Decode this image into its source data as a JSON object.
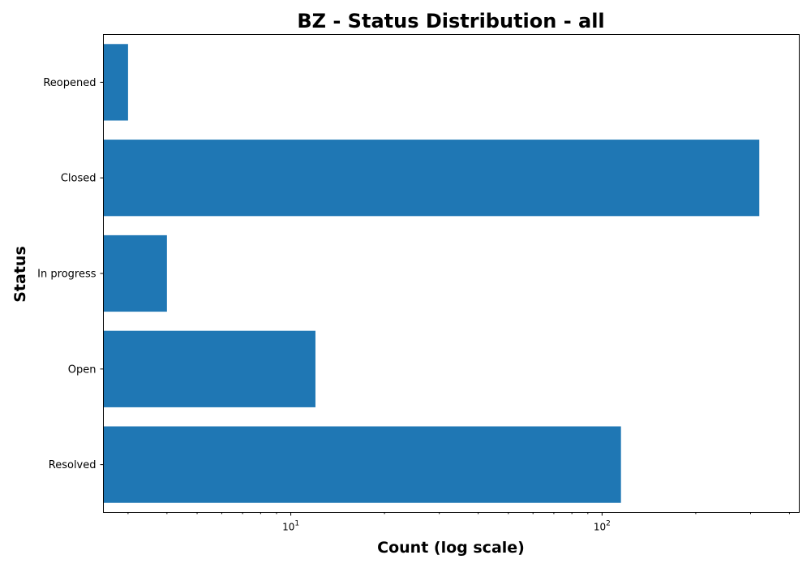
{
  "chart_data": {
    "type": "bar",
    "orientation": "horizontal",
    "title": "BZ - Status Distribution - all",
    "xlabel": "Count (log scale)",
    "ylabel": "Status",
    "x_scale": "log",
    "xlim": [
      2.5,
      430
    ],
    "x_ticks": [
      {
        "value": 10,
        "base": "10",
        "exp": "1"
      },
      {
        "value": 100,
        "base": "10",
        "exp": "2"
      }
    ],
    "categories": [
      "Resolved",
      "Open",
      "In progress",
      "Closed",
      "Reopened"
    ],
    "values": [
      115,
      12,
      4,
      320,
      3
    ],
    "bar_color": "#1f77b4",
    "grid": false,
    "legend": "none"
  }
}
